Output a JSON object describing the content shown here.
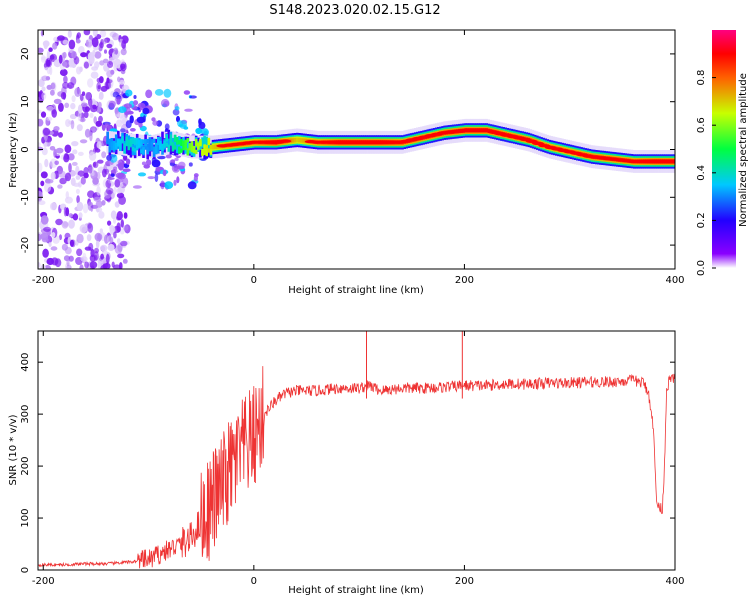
{
  "title": "S148.2023.020.02.15.G12",
  "panels": {
    "spectrogram": {
      "type": "heatmap",
      "xlabel": "Height of straight line (km)",
      "ylabel": "Frequency (Hz)",
      "xlim": [
        -205,
        400
      ],
      "ylim": [
        -25,
        25
      ],
      "xticks": [
        -200,
        0,
        200,
        400
      ],
      "yticks": [
        -20,
        -10,
        0,
        10,
        20
      ],
      "ridge": {
        "x": [
          -140,
          -120,
          -100,
          -80,
          -60,
          -40,
          -20,
          0,
          20,
          40,
          60,
          80,
          100,
          120,
          140,
          160,
          180,
          200,
          220,
          240,
          260,
          280,
          300,
          320,
          340,
          360,
          380,
          400
        ],
        "freq": [
          1.5,
          1.0,
          0.5,
          1.5,
          0.5,
          0.5,
          1.0,
          1.5,
          1.5,
          2.0,
          1.5,
          1.5,
          1.5,
          1.5,
          1.5,
          2.5,
          3.5,
          4.0,
          4.0,
          3.0,
          2.0,
          0.5,
          -0.5,
          -1.5,
          -2.0,
          -2.5,
          -2.5,
          -2.5
        ],
        "amplitude": [
          0.3,
          0.4,
          0.3,
          0.4,
          0.6,
          0.7,
          0.8,
          0.8,
          0.9,
          0.7,
          0.8,
          0.9,
          0.9,
          0.9,
          0.85,
          0.85,
          0.85,
          0.9,
          0.9,
          0.85,
          0.85,
          0.8,
          0.8,
          0.85,
          0.85,
          0.85,
          0.9,
          0.9
        ]
      },
      "noise_region_x": [
        -205,
        -140
      ],
      "colorbar": {
        "label": "Normalized spectral amplitude",
        "ticks": [
          "0.0",
          "0.2",
          "0.4",
          "0.6",
          "0.8"
        ],
        "range": [
          0,
          1
        ]
      }
    },
    "snr": {
      "type": "line",
      "xlabel": "Height of straight line (km)",
      "ylabel": "SNR (10 * v/v)",
      "xlim": [
        -205,
        400
      ],
      "ylim": [
        0,
        460
      ],
      "xticks": [
        -200,
        0,
        200,
        400
      ],
      "yticks": [
        0,
        100,
        200,
        300,
        400
      ],
      "color": "#ee3333",
      "series": {
        "x": [
          -205,
          -180,
          -160,
          -140,
          -120,
          -100,
          -80,
          -60,
          -40,
          -30,
          -20,
          -10,
          0,
          10,
          20,
          30,
          40,
          60,
          80,
          100,
          110,
          120,
          140,
          160,
          180,
          200,
          220,
          240,
          260,
          280,
          300,
          320,
          340,
          360,
          370,
          375,
          378,
          380,
          382,
          384,
          386,
          388,
          390,
          392,
          395,
          400
        ],
        "y": [
          10,
          10,
          12,
          12,
          15,
          20,
          40,
          60,
          130,
          160,
          200,
          230,
          255,
          300,
          325,
          340,
          345,
          345,
          350,
          350,
          355,
          345,
          350,
          350,
          352,
          355,
          355,
          358,
          358,
          360,
          360,
          362,
          362,
          365,
          360,
          340,
          300,
          250,
          150,
          120,
          118,
          120,
          200,
          350,
          365,
          370
        ]
      },
      "spikes": [
        {
          "x": 107,
          "y": 460
        },
        {
          "x": 198,
          "y": 460
        }
      ]
    }
  }
}
